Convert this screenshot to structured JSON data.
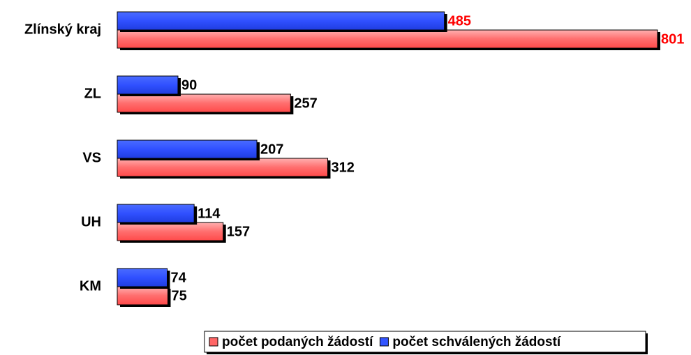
{
  "chart_data": {
    "type": "bar",
    "orientation": "horizontal",
    "categories": [
      "Zlínský kraj",
      "ZL",
      "VS",
      "UH",
      "KM"
    ],
    "series": [
      {
        "name": "počet podaných žádostí",
        "color": "#ff6666",
        "values": [
          801,
          257,
          312,
          157,
          75
        ]
      },
      {
        "name": "počet schválených žádostí",
        "color": "#3355ff",
        "values": [
          485,
          90,
          207,
          114,
          74
        ]
      }
    ],
    "legend": "bottom"
  }
}
